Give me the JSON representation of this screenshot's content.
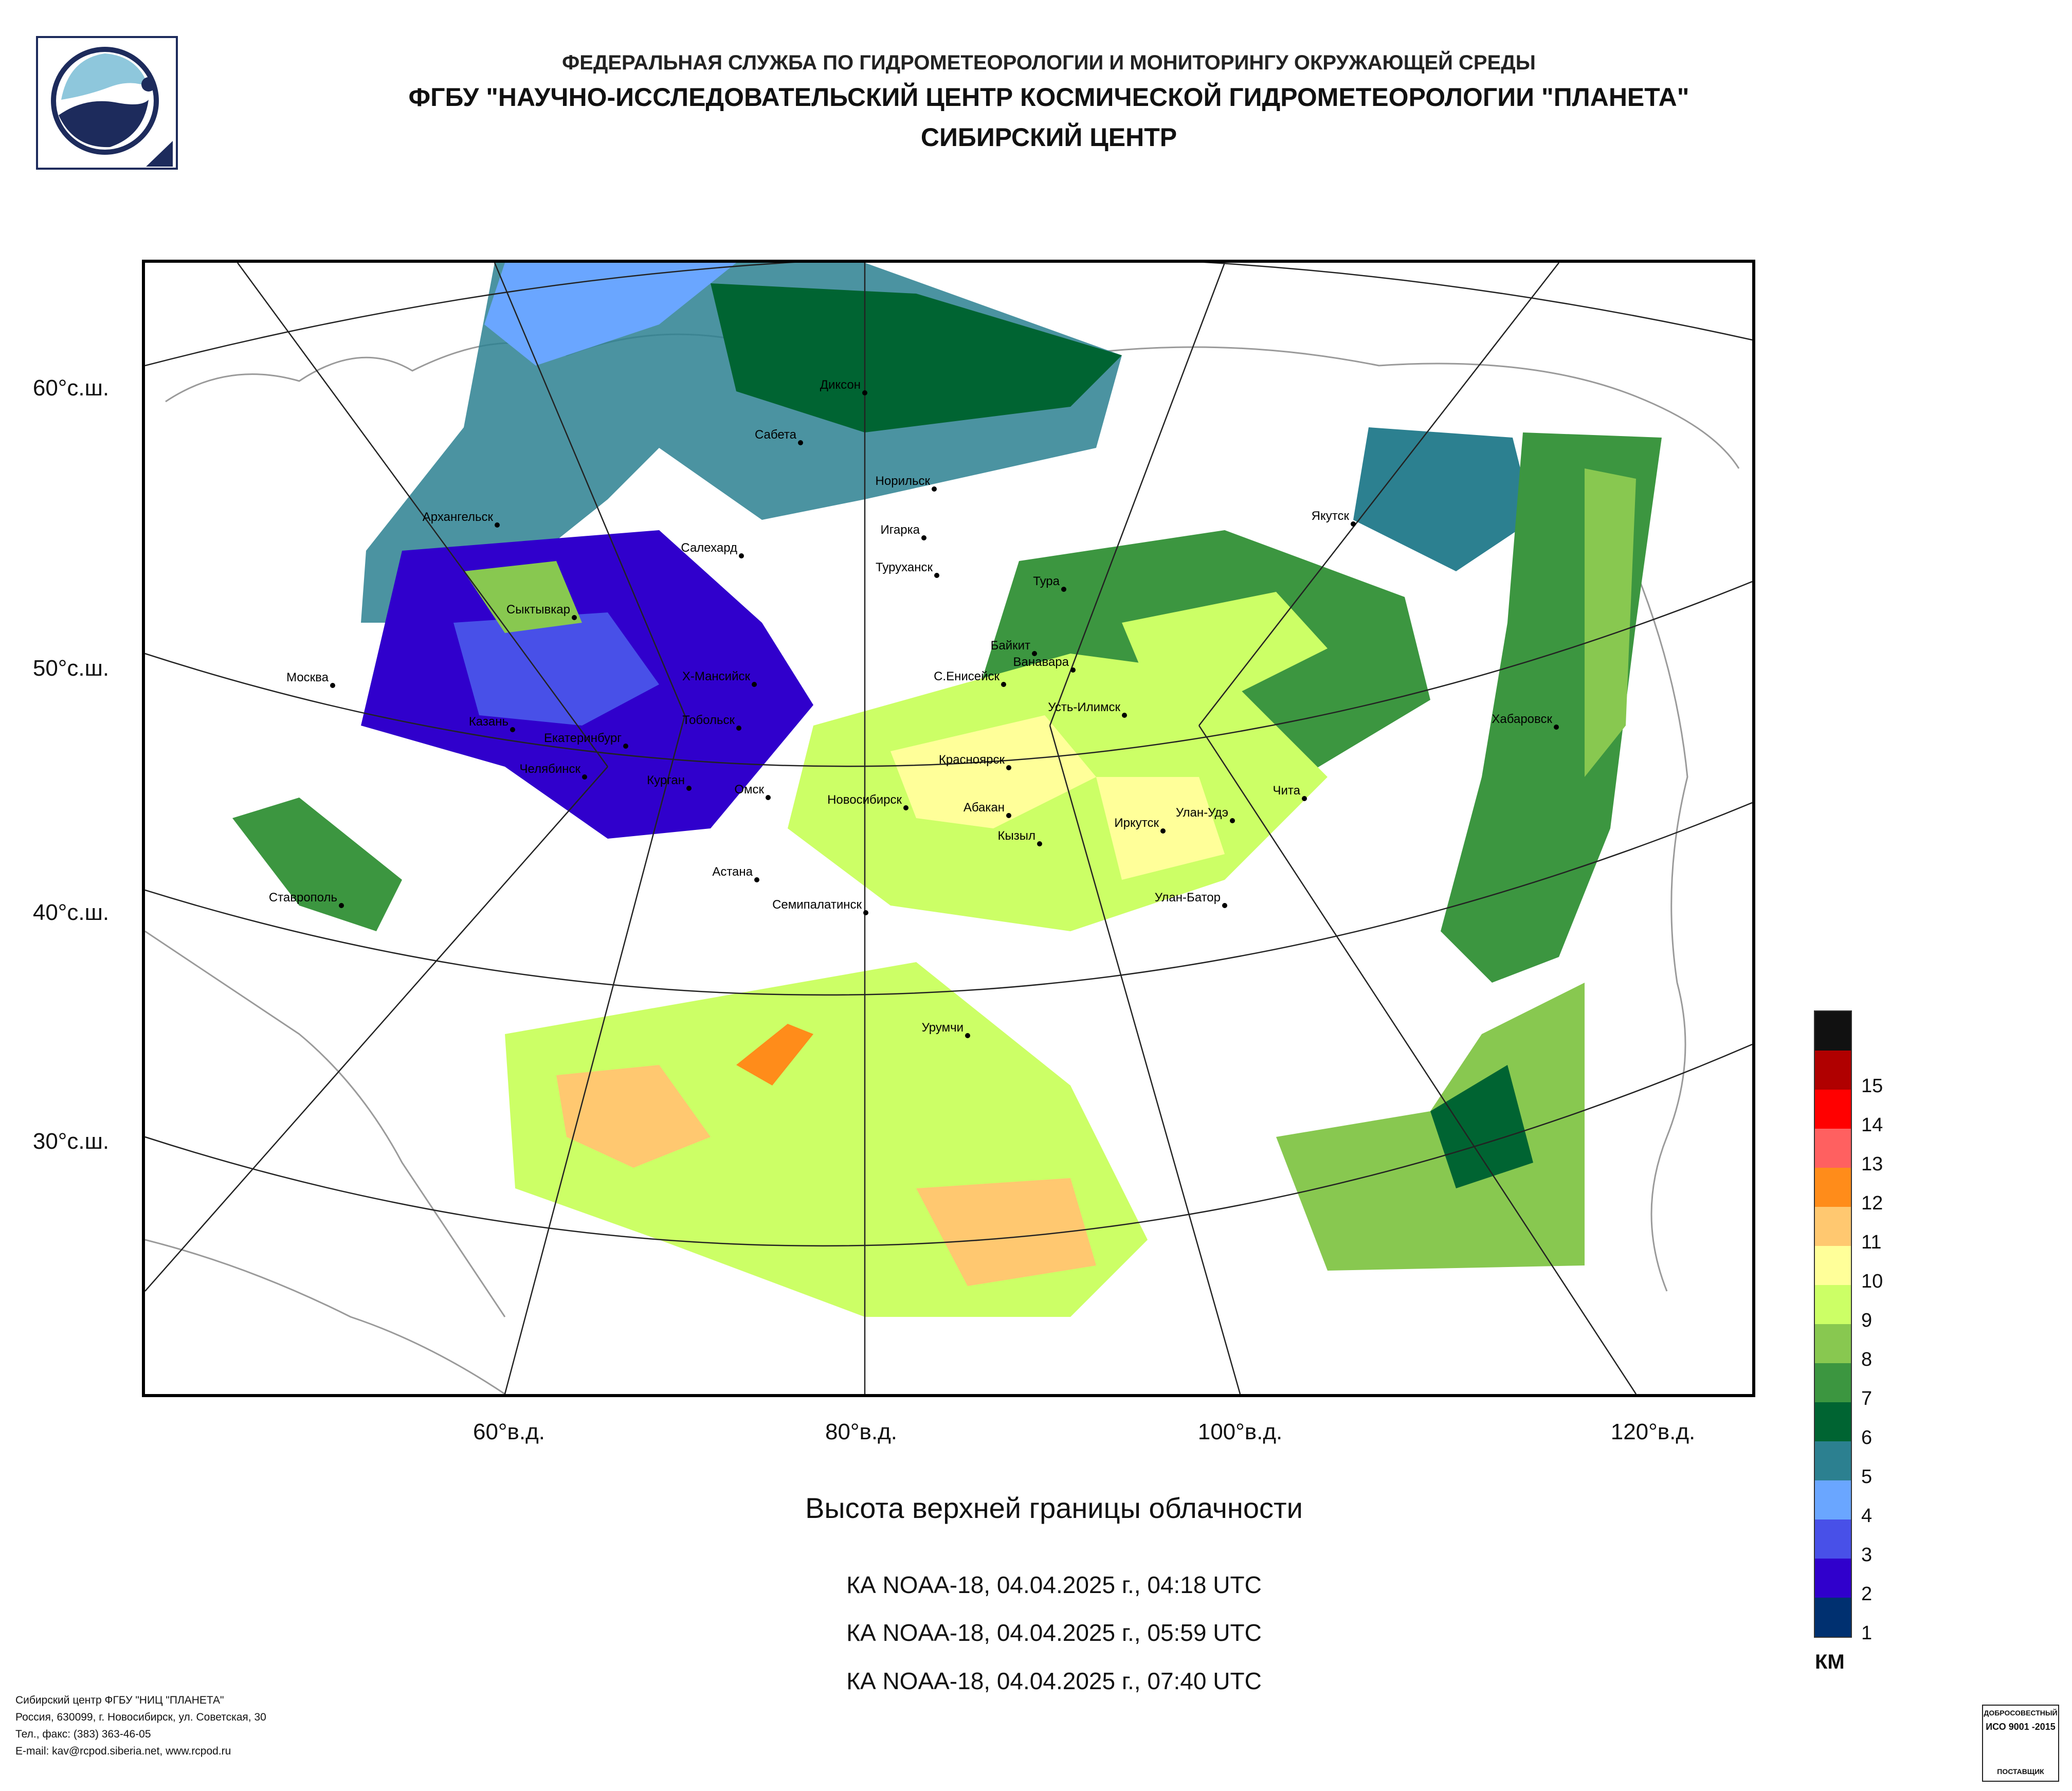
{
  "header": {
    "line1": "ФЕДЕРАЛЬНАЯ СЛУЖБА ПО ГИДРОМЕТЕОРОЛОГИИ И МОНИТОРИНГУ ОКРУЖАЮЩЕЙ СРЕДЫ",
    "line2": "ФГБУ \"НАУЧНО-ИССЛЕДОВАТЕЛЬСКИЙ ЦЕНТР КОСМИЧЕСКОЙ ГИДРОМЕТЕОРОЛОГИИ \"ПЛАНЕТА\"",
    "line3": "СИБИРСКИЙ ЦЕНТР"
  },
  "map": {
    "lat_labels": [
      "60°с.ш.",
      "50°с.ш.",
      "40°с.ш.",
      "30°с.ш."
    ],
    "lon_labels": [
      "60°в.д.",
      "80°в.д.",
      "100°в.д.",
      "120°в.д."
    ],
    "cities": [
      {
        "name": "Диксон"
      },
      {
        "name": "Сабета"
      },
      {
        "name": "Норильск"
      },
      {
        "name": "Архангельск"
      },
      {
        "name": "Салехард"
      },
      {
        "name": "Игарка"
      },
      {
        "name": "Туруханск"
      },
      {
        "name": "Якутск"
      },
      {
        "name": "Тура"
      },
      {
        "name": "Сыктывкар"
      },
      {
        "name": "Байкит"
      },
      {
        "name": "Ванавара"
      },
      {
        "name": "Москва"
      },
      {
        "name": "Х-Мансийск"
      },
      {
        "name": "С.Енисейск"
      },
      {
        "name": "Усть-Илимск"
      },
      {
        "name": "Хабаровск"
      },
      {
        "name": "Казань"
      },
      {
        "name": "Тобольск"
      },
      {
        "name": "Екатеринбург"
      },
      {
        "name": "Красноярск"
      },
      {
        "name": "Челябинск"
      },
      {
        "name": "Курган"
      },
      {
        "name": "Омск"
      },
      {
        "name": "Чита"
      },
      {
        "name": "Новосибирск"
      },
      {
        "name": "Абакан"
      },
      {
        "name": "Улан-Удэ"
      },
      {
        "name": "Иркутск"
      },
      {
        "name": "Кызыл"
      },
      {
        "name": "Астана"
      },
      {
        "name": "Ставрополь"
      },
      {
        "name": "Семипалатинск"
      },
      {
        "name": "Улан-Батор"
      },
      {
        "name": "Урумчи"
      }
    ]
  },
  "title": "Высота верхней границы облачности",
  "passes": [
    "КА NOAA-18, 04.04.2025 г., 04:18 UTC",
    "КА NOAA-18, 04.04.2025 г., 05:59 UTC",
    "КА NOAA-18, 04.04.2025 г., 07:40 UTC"
  ],
  "legend": {
    "unit": "КМ",
    "items": [
      {
        "label": "",
        "color": "#111111"
      },
      {
        "label": "15",
        "color": "#b00000"
      },
      {
        "label": "14",
        "color": "#ff0000"
      },
      {
        "label": "13",
        "color": "#ff6060"
      },
      {
        "label": "12",
        "color": "#ff8c1a"
      },
      {
        "label": "11",
        "color": "#ffc870"
      },
      {
        "label": "10",
        "color": "#ffff99"
      },
      {
        "label": "9",
        "color": "#ccff66"
      },
      {
        "label": "8",
        "color": "#88c850"
      },
      {
        "label": "7",
        "color": "#3c9640"
      },
      {
        "label": "6",
        "color": "#006432"
      },
      {
        "label": "5",
        "color": "#2c8090"
      },
      {
        "label": "4",
        "color": "#6aa6ff"
      },
      {
        "label": "3",
        "color": "#4850e8"
      },
      {
        "label": "2",
        "color": "#3000cc"
      },
      {
        "label": "1",
        "color": "#003070"
      }
    ]
  },
  "footer": [
    "Сибирский центр ФГБУ \"НИЦ \"ПЛАНЕТА\"",
    "Россия, 630099, г. Новосибирск, ул. Советская, 30",
    "Тел., факс: (383) 363-46-05",
    "E-mail: kav@rcpod.siberia.net, www.rcpod.ru"
  ],
  "iso_badge": {
    "top": "ДОБРОСОВЕСТНЫЙ",
    "mid": "ИСО 9001 -2015",
    "bottom": "ПОСТАВЩИК"
  }
}
